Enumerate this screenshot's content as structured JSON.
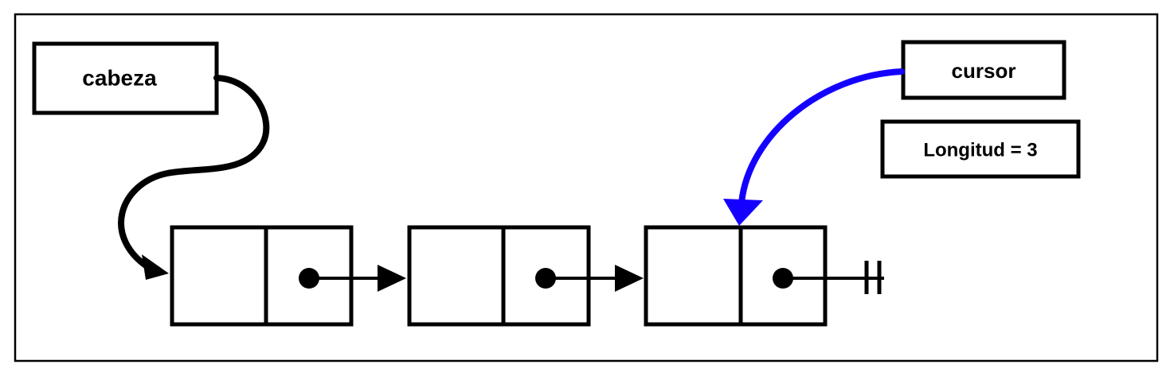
{
  "labels": {
    "head": "cabeza",
    "cursor": "cursor",
    "length": "Longitud = 3"
  },
  "nodes": [
    {
      "id": "node-1"
    },
    {
      "id": "node-2"
    },
    {
      "id": "node-3"
    }
  ],
  "colors": {
    "ink": "#000000",
    "cursor_arrow": "#1400ff",
    "background": "#ffffff"
  },
  "icons": {
    "list_terminator": "ground-null-icon"
  }
}
